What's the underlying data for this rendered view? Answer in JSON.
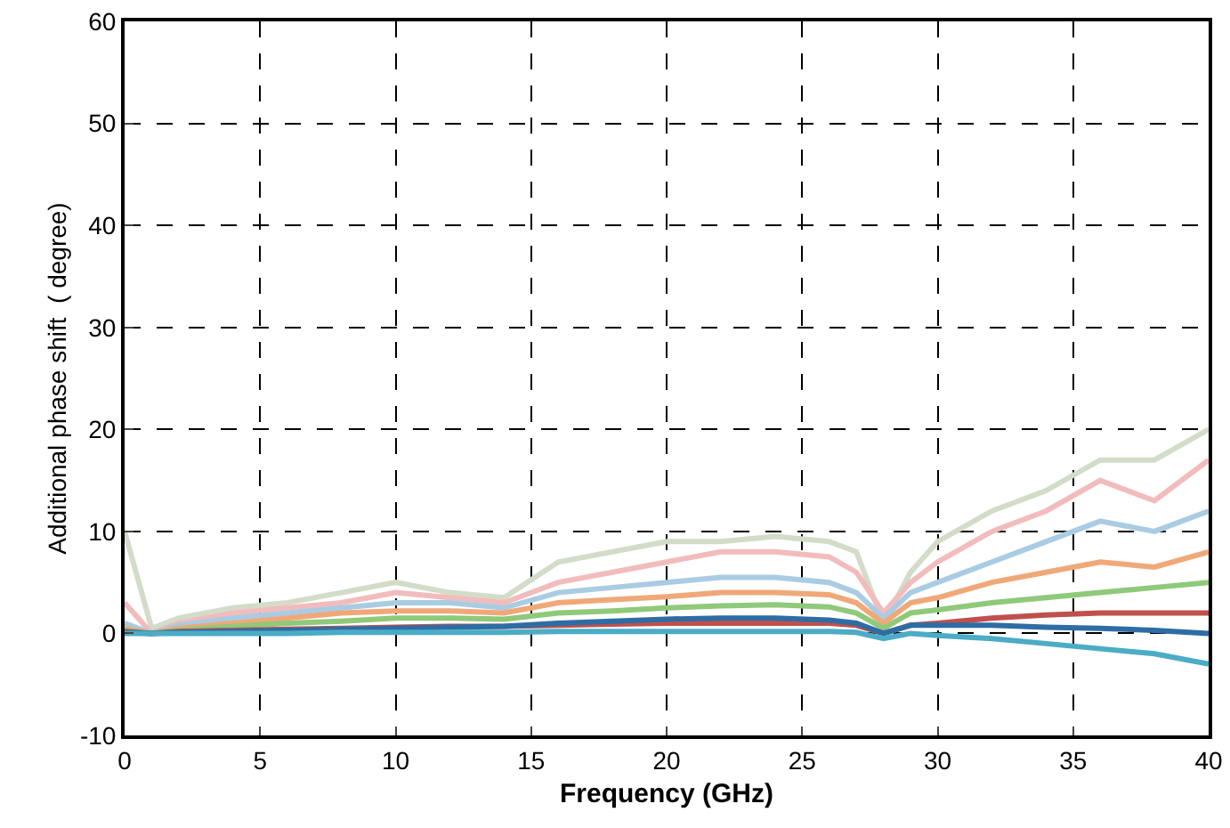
{
  "chart_data": {
    "type": "line",
    "xlabel": "Frequency (GHz)",
    "ylabel": "Additional phase shift  ( degree)",
    "x": [
      0,
      1,
      2,
      4,
      6,
      8,
      10,
      12,
      14,
      16,
      18,
      20,
      22,
      24,
      26,
      27,
      28,
      29,
      30,
      32,
      34,
      36,
      38,
      40
    ],
    "series": [
      {
        "color": "#d3dcc8",
        "values": [
          10,
          0.5,
          1.5,
          2.5,
          3,
          4,
          5,
          4,
          3.5,
          7,
          8,
          9,
          9,
          9.5,
          9,
          8,
          1,
          6,
          9,
          12,
          14,
          17,
          17,
          20
        ]
      },
      {
        "color": "#f2bcbc",
        "values": [
          3,
          0,
          1,
          2,
          2.5,
          3,
          4,
          3.5,
          3,
          5,
          6,
          7,
          8,
          8,
          7.5,
          6,
          2,
          5,
          7,
          10,
          12,
          15,
          13,
          17
        ]
      },
      {
        "color": "#a9cce3",
        "values": [
          1,
          0,
          0.8,
          1.5,
          2,
          2.5,
          3,
          3,
          2.5,
          4,
          4.5,
          5,
          5.5,
          5.5,
          5,
          4,
          1.5,
          4,
          5,
          7,
          9,
          11,
          10,
          12
        ]
      },
      {
        "color": "#f0a878",
        "values": [
          0.5,
          0,
          0.5,
          1,
          1.5,
          2,
          2.2,
          2.2,
          2,
          3,
          3.3,
          3.6,
          4,
          4,
          3.8,
          3,
          1,
          3,
          3.5,
          5,
          6,
          7,
          6.5,
          8
        ]
      },
      {
        "color": "#8fc97a",
        "values": [
          0.3,
          0,
          0.3,
          0.7,
          1,
          1.2,
          1.5,
          1.5,
          1.4,
          2,
          2.2,
          2.5,
          2.7,
          2.8,
          2.6,
          2,
          0.5,
          2,
          2.3,
          3,
          3.5,
          4,
          4.5,
          5
        ]
      },
      {
        "color": "#c0504d",
        "values": [
          0.2,
          0,
          0.2,
          0.3,
          0.4,
          0.5,
          0.6,
          0.7,
          0.7,
          0.8,
          0.9,
          1,
          1,
          1,
          1,
          0.8,
          0,
          0.8,
          1,
          1.5,
          1.8,
          2,
          2,
          2
        ]
      },
      {
        "color": "#2e6da4",
        "values": [
          0.1,
          0,
          0.1,
          0.2,
          0.3,
          0.4,
          0.5,
          0.6,
          0.7,
          1,
          1.2,
          1.4,
          1.5,
          1.5,
          1.3,
          1,
          0,
          0.8,
          0.8,
          0.8,
          0.6,
          0.5,
          0.3,
          0
        ]
      },
      {
        "color": "#4bacc6",
        "values": [
          0,
          0,
          0,
          0,
          0,
          0.1,
          0.1,
          0.1,
          0.1,
          0.2,
          0.2,
          0.2,
          0.2,
          0.2,
          0.2,
          0.1,
          -0.5,
          0,
          -0.2,
          -0.5,
          -1,
          -1.5,
          -2,
          -3
        ]
      }
    ],
    "xlim": [
      0,
      40
    ],
    "xticks": [
      0,
      5,
      10,
      15,
      20,
      25,
      30,
      35,
      40
    ],
    "ylim": [
      -10,
      60
    ],
    "yticks": [
      -10,
      0,
      10,
      20,
      30,
      40,
      50,
      60
    ],
    "grid": true,
    "marker": "none",
    "line_style": "solid"
  }
}
